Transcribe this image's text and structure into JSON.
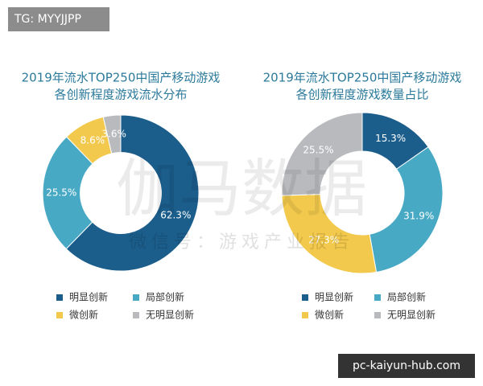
{
  "chart_data": [
    {
      "type": "pie",
      "donut": true,
      "title": [
        "2019年流水TOP250中国产移动游戏",
        "各创新程度游戏流水分布"
      ],
      "categories": [
        "明显创新",
        "局部创新",
        "微创新",
        "无明显创新"
      ],
      "values": [
        62.3,
        25.5,
        8.6,
        3.6
      ],
      "value_labels": [
        "62.3%",
        "25.5%",
        "8.6%",
        "3.6%"
      ],
      "colors": [
        "#1b5e8c",
        "#48a9c5",
        "#f2c94c",
        "#b9babd"
      ]
    },
    {
      "type": "pie",
      "donut": true,
      "title": [
        "2019年流水TOP250中国产移动游戏",
        "各创新程度游戏数量占比"
      ],
      "categories": [
        "明显创新",
        "局部创新",
        "微创新",
        "无明显创新"
      ],
      "values": [
        15.3,
        31.9,
        27.3,
        25.5
      ],
      "value_labels": [
        "15.3%",
        "31.9%",
        "27.3%",
        "25.5%"
      ],
      "colors": [
        "#1b5e8c",
        "#48a9c5",
        "#f2c94c",
        "#b9babd"
      ]
    }
  ],
  "watermark": {
    "main": "伽马数据",
    "sub": "微信号：游戏产业报告"
  },
  "overlays": {
    "tag": "TG: MYYJJPP",
    "site": "pc-kaiyun-hub.com"
  }
}
